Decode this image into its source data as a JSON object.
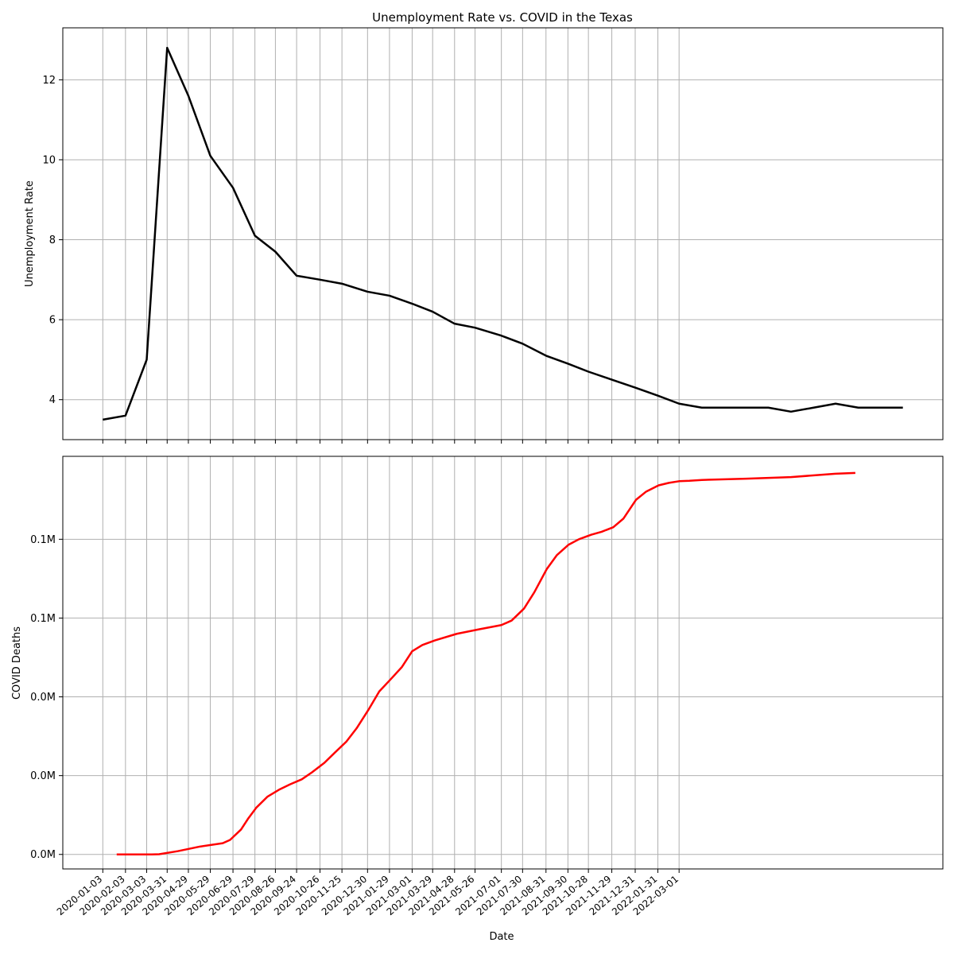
{
  "chart_data": [
    {
      "type": "line",
      "title": "Unemployment Rate vs. COVID in the Texas",
      "xlabel": "",
      "ylabel": "Unemployment Rate",
      "color": "#000000",
      "ylim": [
        3.0,
        13.3
      ],
      "yticks": [
        4,
        6,
        8,
        10,
        12
      ],
      "xticks": [
        "2020-01-03",
        "2020-02-03",
        "2020-03-03",
        "2020-03-31",
        "2020-04-29",
        "2020-05-29",
        "2020-06-29",
        "2020-07-29",
        "2020-08-26",
        "2020-09-24",
        "2020-10-26",
        "2020-11-25",
        "2020-12-30",
        "2021-01-29",
        "2021-03-01",
        "2021-03-29",
        "2021-04-28",
        "2021-05-26",
        "2021-07-01",
        "2021-07-30",
        "2021-08-31",
        "2021-09-30",
        "2021-10-28",
        "2021-11-29",
        "2021-12-31",
        "2022-01-31",
        "2022-03-01"
      ],
      "grid": true,
      "series": [
        {
          "x": [
            "2020-01-03",
            "2020-02-03",
            "2020-03-03",
            "2020-03-31",
            "2020-04-29",
            "2020-05-29",
            "2020-06-29",
            "2020-07-29",
            "2020-08-26",
            "2020-09-24",
            "2020-10-26",
            "2020-11-25",
            "2020-12-30",
            "2021-01-29",
            "2021-03-01",
            "2021-03-29",
            "2021-04-28",
            "2021-05-26",
            "2021-07-01",
            "2021-07-30",
            "2021-08-31",
            "2021-09-30",
            "2021-10-28",
            "2021-11-29",
            "2021-12-31",
            "2022-01-31",
            "2022-03-01",
            "2022-04-01",
            "2022-05-01",
            "2022-06-01",
            "2022-07-01",
            "2022-08-01",
            "2022-09-01",
            "2022-10-01",
            "2022-11-01",
            "2022-12-01",
            "2023-01-01"
          ],
          "values": [
            3.5,
            3.6,
            5.0,
            12.8,
            11.6,
            10.1,
            9.3,
            8.1,
            7.7,
            7.1,
            7.0,
            6.9,
            6.7,
            6.6,
            6.4,
            6.2,
            5.9,
            5.8,
            5.6,
            5.4,
            5.1,
            4.9,
            4.7,
            4.5,
            4.3,
            4.1,
            3.9,
            3.8,
            3.8,
            3.8,
            3.8,
            3.7,
            3.8,
            3.9,
            3.8,
            3.8,
            3.8
          ]
        }
      ]
    },
    {
      "type": "line",
      "title": "",
      "xlabel": "Date",
      "ylabel": "COVID Deaths",
      "color": "#ff0000",
      "ylim": [
        -3500,
        96000
      ],
      "yticks": [
        0,
        19000,
        38000,
        57000,
        76000
      ],
      "ytick_labels": [
        "0.0M",
        "0.0M",
        "0.0M",
        "0.1M",
        "0.1M"
      ],
      "grid": true,
      "series": [
        {
          "x": [
            "2020-01-22",
            "2020-03-10",
            "2020-03-20",
            "2020-04-15",
            "2020-05-15",
            "2020-06-15",
            "2020-06-25",
            "2020-07-10",
            "2020-07-20",
            "2020-07-31",
            "2020-08-15",
            "2020-09-01",
            "2020-09-15",
            "2020-10-01",
            "2020-10-15",
            "2020-11-01",
            "2020-11-15",
            "2020-12-01",
            "2020-12-15",
            "2021-01-01",
            "2021-01-15",
            "2021-02-01",
            "2021-02-15",
            "2021-03-01",
            "2021-03-15",
            "2021-04-01",
            "2021-05-01",
            "2021-06-01",
            "2021-07-01",
            "2021-07-15",
            "2021-08-01",
            "2021-08-15",
            "2021-09-01",
            "2021-09-15",
            "2021-10-01",
            "2021-10-15",
            "2021-11-01",
            "2021-11-15",
            "2021-12-01",
            "2021-12-15",
            "2022-01-01",
            "2022-01-15",
            "2022-02-01",
            "2022-02-15",
            "2022-03-01",
            "2022-03-15",
            "2022-04-01",
            "2022-06-01",
            "2022-08-01",
            "2022-10-01",
            "2022-10-28"
          ],
          "values": [
            0,
            0,
            50,
            800,
            1900,
            2700,
            3500,
            6000,
            8700,
            11300,
            13900,
            15700,
            16900,
            18100,
            19800,
            22100,
            24500,
            27200,
            30400,
            35100,
            39300,
            42500,
            45200,
            49000,
            50500,
            51600,
            53200,
            54300,
            55300,
            56400,
            59300,
            63200,
            68800,
            72200,
            74700,
            76000,
            77100,
            77800,
            78900,
            81000,
            85500,
            87500,
            89000,
            89600,
            90000,
            90100,
            90300,
            90600,
            91000,
            91800,
            92000
          ]
        }
      ]
    }
  ]
}
